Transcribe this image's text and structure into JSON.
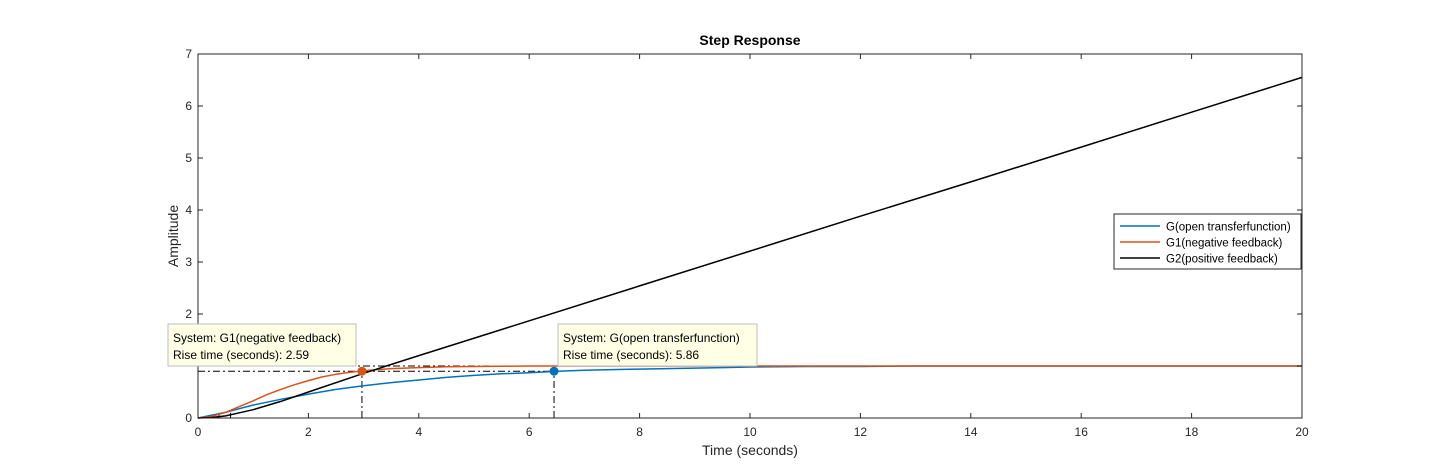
{
  "chart_data": {
    "type": "line",
    "title": "Step Response",
    "xlabel": "Time (seconds)",
    "ylabel": "Amplitude",
    "xlim": [
      0,
      20
    ],
    "ylim": [
      0,
      7
    ],
    "xticks": [
      0,
      2,
      4,
      6,
      8,
      10,
      12,
      14,
      16,
      18,
      20
    ],
    "yticks": [
      0,
      1,
      2,
      3,
      4,
      5,
      6,
      7
    ],
    "ytick_labels": [
      "0",
      "",
      "2",
      "3",
      "4",
      "5",
      "6",
      "7"
    ],
    "grid": false,
    "legend_position": "right",
    "series": [
      {
        "name": "G(open transferfunction)",
        "color": "#0072BD",
        "x": [
          0,
          0.5,
          1,
          1.5,
          2,
          2.5,
          3,
          3.5,
          4,
          4.5,
          5,
          5.5,
          6,
          6.5,
          7,
          7.5,
          8,
          8.5,
          9,
          9.5,
          10,
          11,
          12,
          13,
          14,
          15,
          16,
          17,
          18,
          19,
          20
        ],
        "y": [
          0,
          0.11,
          0.25,
          0.36,
          0.46,
          0.55,
          0.62,
          0.68,
          0.73,
          0.78,
          0.82,
          0.85,
          0.87,
          0.9,
          0.92,
          0.93,
          0.94,
          0.95,
          0.96,
          0.97,
          0.98,
          0.99,
          0.99,
          1,
          1,
          1,
          1,
          1,
          1,
          1,
          1
        ]
      },
      {
        "name": "G1(negative feedback)",
        "color": "#D95319",
        "x": [
          0,
          0.25,
          0.5,
          0.75,
          1,
          1.25,
          1.5,
          1.75,
          2,
          2.25,
          2.5,
          2.75,
          3,
          3.5,
          4,
          4.5,
          5,
          6,
          7,
          8,
          10,
          12,
          14,
          16,
          18,
          20
        ],
        "y": [
          0,
          0.03,
          0.11,
          0.22,
          0.33,
          0.45,
          0.55,
          0.64,
          0.72,
          0.79,
          0.84,
          0.88,
          0.91,
          0.95,
          0.97,
          0.985,
          0.99,
          1,
          1,
          1,
          1,
          1,
          1,
          1,
          1,
          1
        ]
      },
      {
        "name": "G2(positive feedback)",
        "color": "#000000",
        "x": [
          0,
          0.25,
          0.5,
          0.75,
          1,
          1.5,
          2,
          3,
          4,
          6,
          8,
          10,
          12,
          14,
          16,
          18,
          20
        ],
        "y": [
          0,
          0.01,
          0.04,
          0.1,
          0.16,
          0.32,
          0.5,
          0.86,
          1.2,
          1.87,
          2.54,
          3.21,
          3.88,
          4.54,
          5.21,
          5.88,
          6.55
        ]
      }
    ],
    "reference_lines": {
      "level_rise_low": 0.1,
      "level_rise_high": 0.9,
      "level_final": 1.0,
      "times_G": [
        0.59,
        6.45
      ],
      "times_G1": [
        0.38,
        2.97
      ]
    },
    "datatips": [
      {
        "series": "G1(negative feedback)",
        "x": 2.97,
        "y": 0.9,
        "color": "#D95319",
        "lines": [
          "System: G1(negative feedback)",
          "Rise time (seconds): 2.59"
        ]
      },
      {
        "series": "G(open transferfunction)",
        "x": 6.45,
        "y": 0.9,
        "color": "#0072BD",
        "lines": [
          "System: G(open transferfunction)",
          "Rise time (seconds): 5.86"
        ]
      }
    ]
  }
}
